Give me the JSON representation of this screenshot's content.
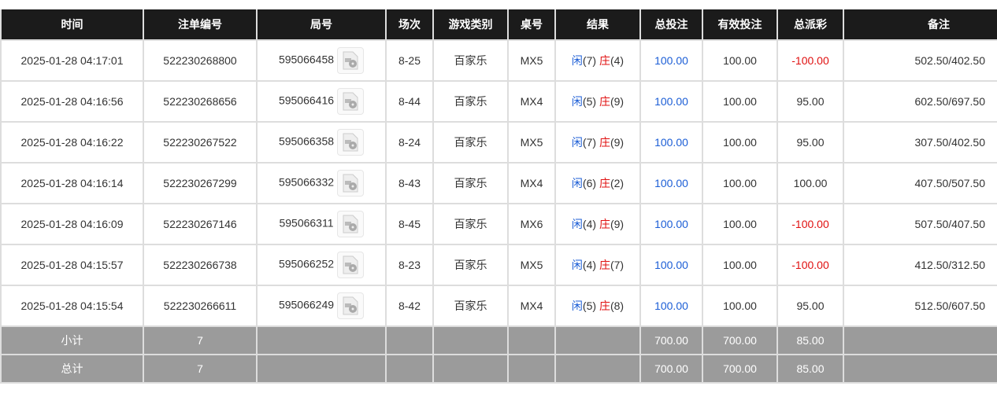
{
  "headers": [
    "时间",
    "注单编号",
    "局号",
    "场次",
    "游戏类别",
    "桌号",
    "结果",
    "总投注",
    "有效投注",
    "总派彩",
    "备注"
  ],
  "player_label": "闲",
  "banker_label": "庄",
  "rows": [
    {
      "time": "2025-01-28 04:17:01",
      "bet_id": "522230268800",
      "round": "595066458",
      "session": "8-25",
      "game": "百家乐",
      "table": "MX5",
      "p": "(7)",
      "b": "(4)",
      "total": "100.00",
      "valid": "100.00",
      "payout": "-100.00",
      "neg": true,
      "note": "502.50/402.50"
    },
    {
      "time": "2025-01-28 04:16:56",
      "bet_id": "522230268656",
      "round": "595066416",
      "session": "8-44",
      "game": "百家乐",
      "table": "MX4",
      "p": "(5)",
      "b": "(9)",
      "total": "100.00",
      "valid": "100.00",
      "payout": "95.00",
      "neg": false,
      "note": "602.50/697.50"
    },
    {
      "time": "2025-01-28 04:16:22",
      "bet_id": "522230267522",
      "round": "595066358",
      "session": "8-24",
      "game": "百家乐",
      "table": "MX5",
      "p": "(7)",
      "b": "(9)",
      "total": "100.00",
      "valid": "100.00",
      "payout": "95.00",
      "neg": false,
      "note": "307.50/402.50"
    },
    {
      "time": "2025-01-28 04:16:14",
      "bet_id": "522230267299",
      "round": "595066332",
      "session": "8-43",
      "game": "百家乐",
      "table": "MX4",
      "p": "(6)",
      "b": "(2)",
      "total": "100.00",
      "valid": "100.00",
      "payout": "100.00",
      "neg": false,
      "note": "407.50/507.50"
    },
    {
      "time": "2025-01-28 04:16:09",
      "bet_id": "522230267146",
      "round": "595066311",
      "session": "8-45",
      "game": "百家乐",
      "table": "MX6",
      "p": "(4)",
      "b": "(9)",
      "total": "100.00",
      "valid": "100.00",
      "payout": "-100.00",
      "neg": true,
      "note": "507.50/407.50"
    },
    {
      "time": "2025-01-28 04:15:57",
      "bet_id": "522230266738",
      "round": "595066252",
      "session": "8-23",
      "game": "百家乐",
      "table": "MX5",
      "p": "(4)",
      "b": "(7)",
      "total": "100.00",
      "valid": "100.00",
      "payout": "-100.00",
      "neg": true,
      "note": "412.50/312.50"
    },
    {
      "time": "2025-01-28 04:15:54",
      "bet_id": "522230266611",
      "round": "595066249",
      "session": "8-42",
      "game": "百家乐",
      "table": "MX4",
      "p": "(5)",
      "b": "(8)",
      "total": "100.00",
      "valid": "100.00",
      "payout": "95.00",
      "neg": false,
      "note": "512.50/607.50"
    }
  ],
  "summary": [
    {
      "label": "小计",
      "count": "7",
      "total": "700.00",
      "valid": "700.00",
      "payout": "85.00"
    },
    {
      "label": "总计",
      "count": "7",
      "total": "700.00",
      "valid": "700.00",
      "payout": "85.00"
    }
  ],
  "colors": {
    "player": "#1c5ed6",
    "banker": "#e01010",
    "negative": "#e01010",
    "header": "#1b1b1b",
    "summary": "#9b9b9b"
  }
}
